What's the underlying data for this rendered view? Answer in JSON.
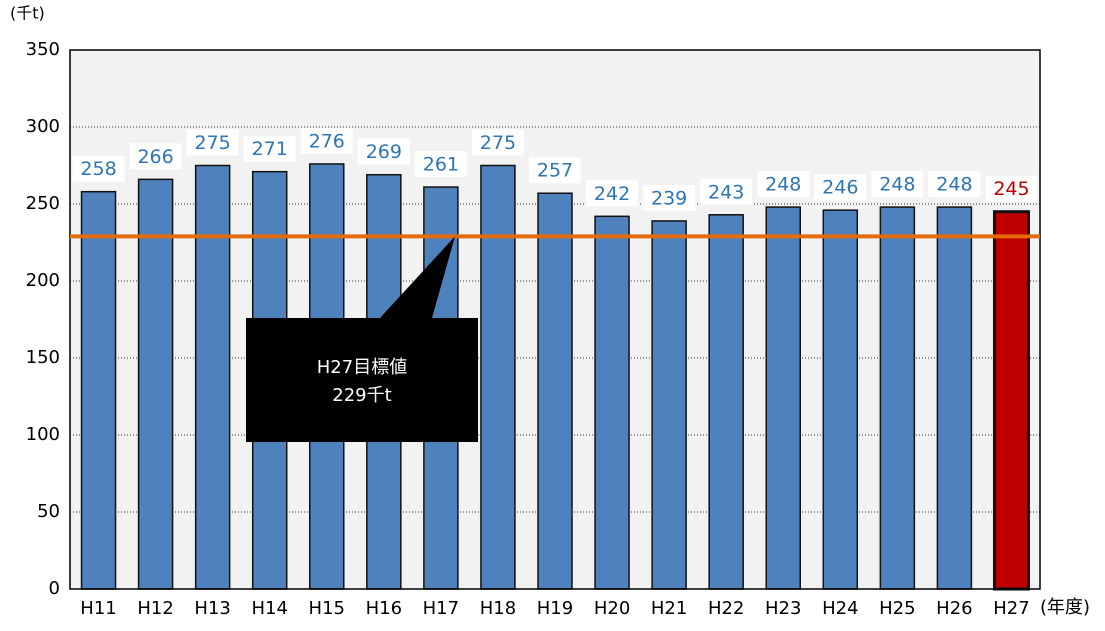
{
  "chart_data": {
    "type": "bar",
    "y_label": "(千t)",
    "x_label": "(年度)",
    "categories": [
      "H11",
      "H12",
      "H13",
      "H14",
      "H15",
      "H16",
      "H17",
      "H18",
      "H19",
      "H20",
      "H21",
      "H22",
      "H23",
      "H24",
      "H25",
      "H26",
      "H27"
    ],
    "values": [
      258,
      266,
      275,
      271,
      276,
      269,
      261,
      275,
      257,
      242,
      239,
      243,
      248,
      246,
      248,
      248,
      245
    ],
    "colors": [
      "#4f81bd",
      "#4f81bd",
      "#4f81bd",
      "#4f81bd",
      "#4f81bd",
      "#4f81bd",
      "#4f81bd",
      "#4f81bd",
      "#4f81bd",
      "#4f81bd",
      "#4f81bd",
      "#4f81bd",
      "#4f81bd",
      "#4f81bd",
      "#4f81bd",
      "#4f81bd",
      "#c00000"
    ],
    "label_colors": [
      "#2e75b6",
      "#2e75b6",
      "#2e75b6",
      "#2e75b6",
      "#2e75b6",
      "#2e75b6",
      "#2e75b6",
      "#2e75b6",
      "#2e75b6",
      "#2e75b6",
      "#2e75b6",
      "#2e75b6",
      "#2e75b6",
      "#2e75b6",
      "#2e75b6",
      "#2e75b6",
      "#c00000"
    ],
    "ylim": [
      0,
      350
    ],
    "yticks": [
      0,
      50,
      100,
      150,
      200,
      250,
      300,
      350
    ],
    "grid": true,
    "target": {
      "value": 229,
      "color": "#e36c09",
      "label_lines": [
        "H27目標値",
        "229千t"
      ]
    }
  }
}
